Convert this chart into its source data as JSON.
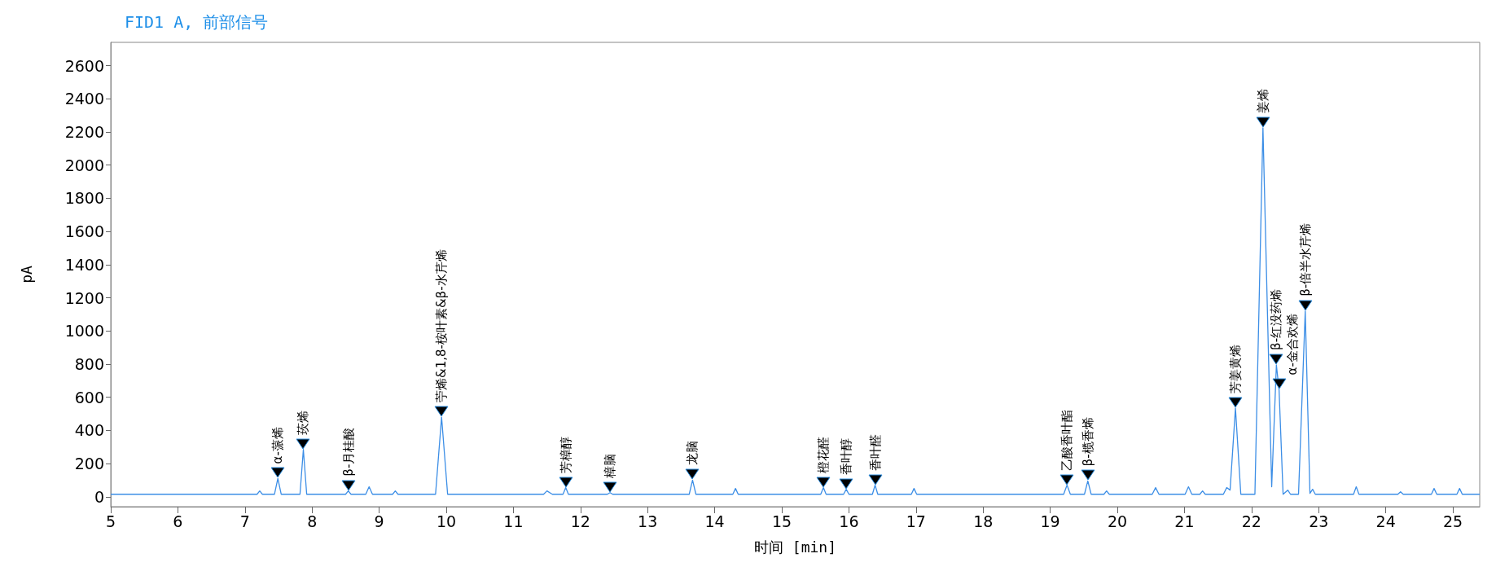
{
  "chart_data": {
    "type": "line",
    "title": "FID1 A, 前部信号",
    "xlabel": "时间 [min]",
    "ylabel": "pA",
    "xlim": [
      5,
      25.4
    ],
    "xticks": [
      5,
      6,
      7,
      8,
      9,
      10,
      11,
      12,
      13,
      14,
      15,
      16,
      17,
      18,
      19,
      20,
      21,
      22,
      23,
      24,
      25
    ],
    "ylim": [
      -60,
      2740
    ],
    "yticks": [
      0,
      200,
      400,
      600,
      800,
      1000,
      1200,
      1400,
      1600,
      1800,
      2000,
      2200,
      2400,
      2600
    ],
    "grid": false,
    "marker": "none",
    "line_style": "solid",
    "series": [
      {
        "color": "#3c8ee6",
        "x": [
          5,
          7.18,
          7.22,
          7.26,
          7.44,
          7.49,
          7.54,
          7.82,
          7.87,
          7.92,
          8.5,
          8.54,
          8.58,
          8.8,
          8.85,
          8.9,
          9.2,
          9.24,
          9.28,
          9.84,
          9.93,
          10.02,
          11.45,
          11.5,
          11.58,
          11.74,
          11.78,
          11.82,
          12.4,
          12.44,
          12.48,
          13.62,
          13.67,
          13.72,
          14.27,
          14.31,
          14.35,
          15.58,
          15.62,
          15.66,
          15.92,
          15.96,
          16,
          16.35,
          16.39,
          16.43,
          16.93,
          16.97,
          17.01,
          19.2,
          19.25,
          19.3,
          19.51,
          19.56,
          19.61,
          19.8,
          19.84,
          19.88,
          20.52,
          20.57,
          20.62,
          21.01,
          21.06,
          21.11,
          21.23,
          21.27,
          21.31,
          21.58,
          21.63,
          21.68,
          21.76,
          21.84,
          22.05,
          22.17,
          22.3,
          22.37,
          22.41,
          22.47,
          22.54,
          22.58,
          22.7,
          22.8,
          22.87,
          22.91,
          22.95,
          23.52,
          23.56,
          23.6,
          24.18,
          24.22,
          24.26,
          24.68,
          24.72,
          24.76,
          25.06,
          25.1,
          25.14,
          25.4
        ],
        "values": [
          15,
          15,
          35,
          15,
          15,
          110,
          15,
          15,
          285,
          15,
          15,
          35,
          15,
          15,
          60,
          15,
          15,
          35,
          15,
          15,
          480,
          15,
          15,
          35,
          15,
          15,
          55,
          15,
          15,
          25,
          15,
          15,
          100,
          15,
          15,
          50,
          15,
          15,
          55,
          15,
          15,
          45,
          15,
          15,
          70,
          15,
          15,
          50,
          15,
          15,
          70,
          15,
          15,
          95,
          15,
          15,
          35,
          15,
          15,
          55,
          15,
          15,
          60,
          15,
          15,
          35,
          15,
          15,
          55,
          40,
          535,
          15,
          15,
          2225,
          60,
          795,
          645,
          15,
          40,
          15,
          15,
          1120,
          20,
          45,
          15,
          15,
          60,
          15,
          15,
          30,
          15,
          15,
          50,
          15,
          15,
          50,
          15,
          15
        ]
      }
    ],
    "annotations": [
      {
        "text": "α-蒎烯",
        "x": 7.49,
        "y": 110
      },
      {
        "text": "莰烯",
        "x": 7.87,
        "y": 285
      },
      {
        "text": "β-月桂酸",
        "x": 8.54,
        "y": 35
      },
      {
        "text": "苧烯&1,8-桉叶素&β-水芹烯",
        "x": 9.93,
        "y": 480
      },
      {
        "text": "芳樟醇",
        "x": 11.78,
        "y": 55
      },
      {
        "text": "樟脑",
        "x": 12.44,
        "y": 25
      },
      {
        "text": "龙脑",
        "x": 13.67,
        "y": 100
      },
      {
        "text": "橙花醛",
        "x": 15.62,
        "y": 55
      },
      {
        "text": "香叶醇",
        "x": 15.96,
        "y": 45
      },
      {
        "text": "香叶醛",
        "x": 16.39,
        "y": 70
      },
      {
        "text": "乙酸香叶酯",
        "x": 19.25,
        "y": 70
      },
      {
        "text": "β-榄香烯",
        "x": 19.56,
        "y": 95
      },
      {
        "text": "芳姜黄烯",
        "x": 21.76,
        "y": 535
      },
      {
        "text": "姜烯",
        "x": 22.17,
        "y": 2225
      },
      {
        "text": "β-红没药烯",
        "x": 22.37,
        "y": 795
      },
      {
        "text": "α-金合欢烯",
        "x": 22.41,
        "y": 645
      },
      {
        "text": "β-倍半水芹烯",
        "x": 22.8,
        "y": 1120
      }
    ]
  }
}
